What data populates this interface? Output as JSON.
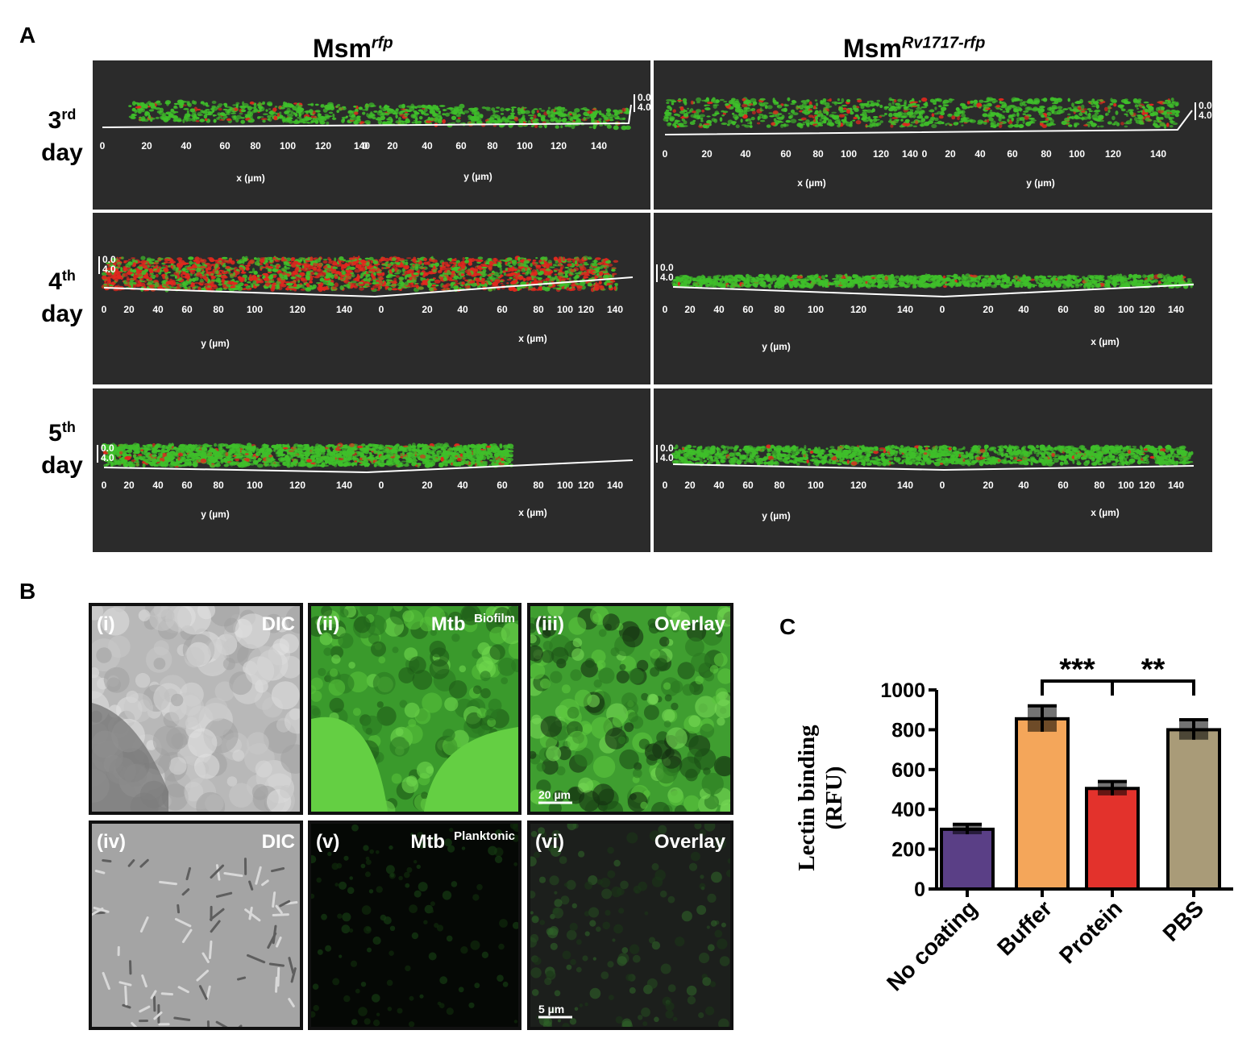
{
  "panels": {
    "a_letter": "A",
    "b_letter": "B",
    "c_letter": "C"
  },
  "panel_a": {
    "columns": [
      {
        "base": "Msm",
        "sup": "rfp"
      },
      {
        "base": "Msm",
        "sup": "Rv1717-rfp"
      }
    ],
    "rows": [
      {
        "num": "3",
        "sup": "rd",
        "word": "day"
      },
      {
        "num": "4",
        "sup": "th",
        "word": "day"
      },
      {
        "num": "5",
        "sup": "th",
        "word": "day"
      }
    ],
    "axis_labels": {
      "x": "x (µm)",
      "y": "y (µm)"
    },
    "depth_ticks": [
      "0.0",
      "4.0"
    ],
    "tick_row3": [
      "0",
      "20",
      "40",
      "60",
      "80",
      "100",
      "120",
      "140",
      "0",
      "20",
      "40",
      "60",
      "80",
      "100",
      "120",
      "140"
    ],
    "tick_row45": [
      "0",
      "20",
      "40",
      "60",
      "80",
      "100",
      "120",
      "140",
      "0",
      "20",
      "40",
      "60",
      "80",
      "100",
      "120",
      "140"
    ],
    "colors": {
      "background": "#2b2b2b",
      "green": "#3fbf2a",
      "red": "#e0281e"
    }
  },
  "panel_b": {
    "images": [
      {
        "id": "i",
        "label": "(i)",
        "title": "DIC",
        "sup": ""
      },
      {
        "id": "ii",
        "label": "(ii)",
        "title": "Mtb",
        "sup": "Biofilm"
      },
      {
        "id": "iii",
        "label": "(iii)",
        "title": "Overlay",
        "sup": ""
      },
      {
        "id": "iv",
        "label": "(iv)",
        "title": "DIC",
        "sup": ""
      },
      {
        "id": "v",
        "label": "(v)",
        "title": "Mtb",
        "sup": "Planktonic"
      },
      {
        "id": "vi",
        "label": "(vi)",
        "title": "Overlay",
        "sup": ""
      }
    ],
    "scale_bars": [
      "20 µm",
      "5 µm"
    ]
  },
  "chart_data": {
    "type": "bar",
    "categories": [
      "No coating",
      "Buffer",
      "Protein",
      "PBS"
    ],
    "values": [
      300,
      855,
      505,
      800
    ],
    "errors": [
      25,
      65,
      35,
      50
    ],
    "colors": [
      "#5a3f86",
      "#f4a65a",
      "#e3322c",
      "#a99b78"
    ],
    "ylabel_line1": "Lectin binding",
    "ylabel_line2": "(RFU)",
    "ylim": [
      0,
      1000
    ],
    "yticks": [
      "0",
      "200",
      "400",
      "600",
      "800",
      "1000"
    ],
    "ytick_values": [
      0,
      200,
      400,
      600,
      800,
      1000
    ],
    "significance": [
      {
        "from": "Buffer",
        "to": "Protein",
        "label": "***"
      },
      {
        "from": "Protein",
        "to": "PBS",
        "label": "**"
      }
    ]
  }
}
